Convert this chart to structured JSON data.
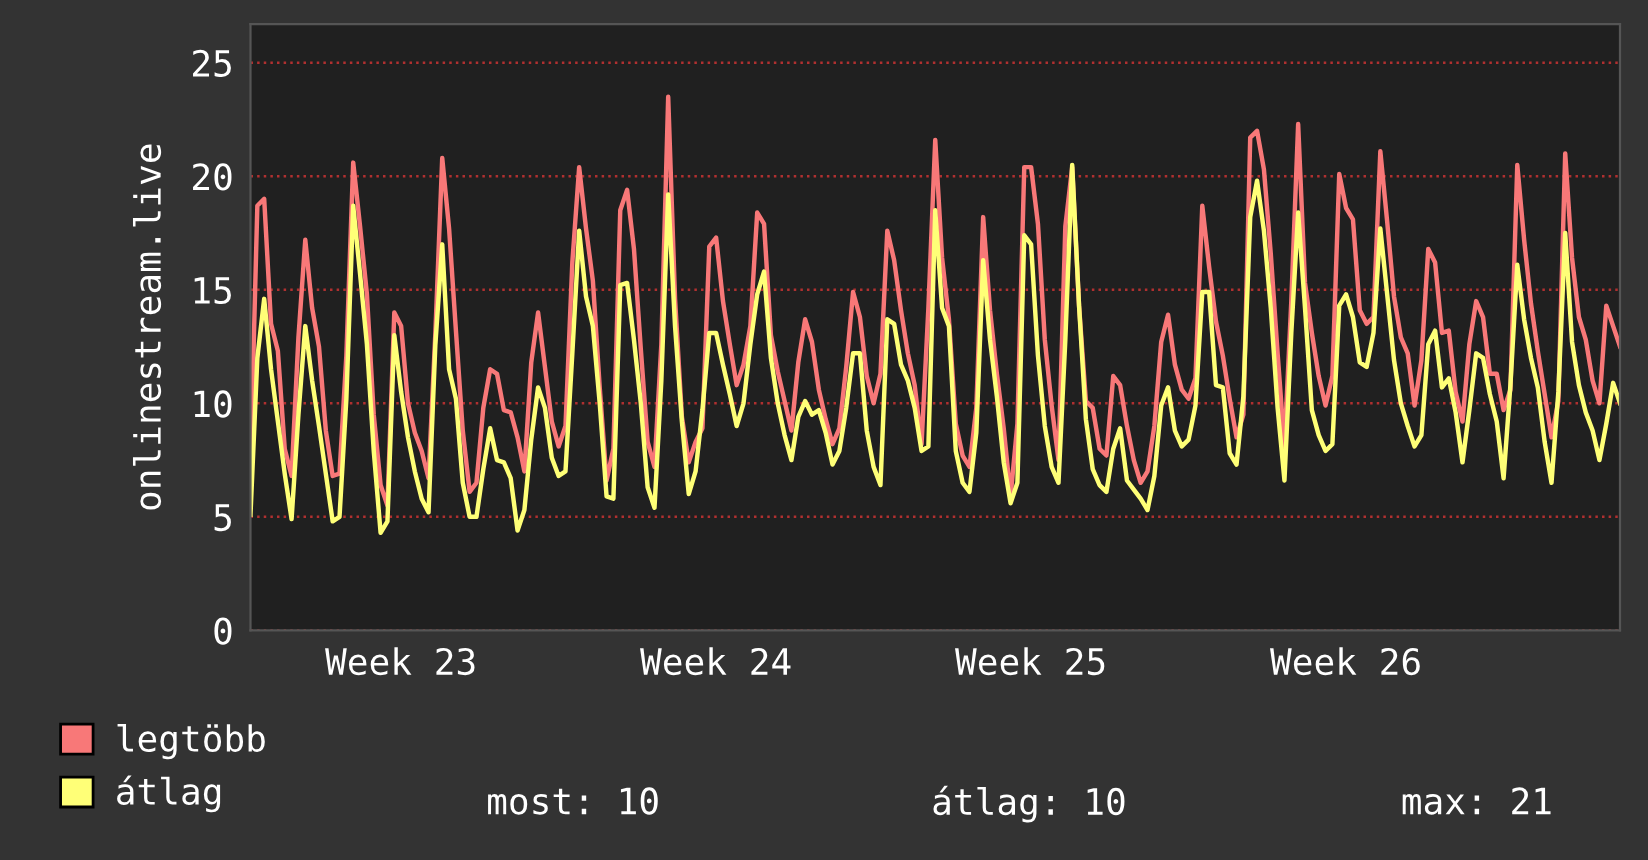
{
  "chart_data": {
    "type": "line",
    "ylabel": "onlinestream.live",
    "categories": [
      null,
      null,
      null,
      null,
      null,
      null,
      null,
      null,
      null,
      null,
      null,
      null,
      null,
      null,
      null,
      null,
      null,
      null,
      null,
      null,
      null,
      null,
      "Week 23",
      null,
      null,
      null,
      null,
      null,
      null,
      null,
      null,
      null,
      null,
      null,
      null,
      null,
      null,
      null,
      null,
      null,
      null,
      null,
      null,
      null,
      null,
      null,
      null,
      null,
      null,
      null,
      null,
      null,
      null,
      null,
      null,
      null,
      null,
      null,
      null,
      null,
      null,
      null,
      null,
      null,
      null,
      null,
      null,
      null,
      "Week 24",
      null,
      null,
      null,
      null,
      null,
      null,
      null,
      null,
      null,
      null,
      null,
      null,
      null,
      null,
      null,
      null,
      null,
      null,
      null,
      null,
      null,
      null,
      null,
      null,
      null,
      null,
      null,
      null,
      null,
      null,
      null,
      null,
      null,
      null,
      null,
      null,
      null,
      null,
      null,
      null,
      null,
      null,
      null,
      null,
      null,
      "Week 25",
      null,
      null,
      null,
      null,
      null,
      null,
      null,
      null,
      null,
      null,
      null,
      null,
      null,
      null,
      null,
      null,
      null,
      null,
      null,
      null,
      null,
      null,
      null,
      null,
      null,
      null,
      null,
      null,
      null,
      null,
      null,
      null,
      null,
      null,
      null,
      null,
      null,
      null,
      null,
      null,
      null,
      null,
      null,
      null,
      null,
      "Week 26",
      null,
      null,
      null,
      null,
      null,
      null,
      null,
      null,
      null,
      null,
      null,
      null,
      null,
      null,
      null,
      null,
      null,
      null,
      null,
      null,
      null,
      null,
      null,
      null,
      null,
      null,
      null,
      null,
      null,
      null,
      null,
      null,
      null,
      null,
      null,
      null,
      null,
      null,
      null,
      null
    ],
    "ylim": [
      0,
      26.7
    ],
    "yticks": [
      0,
      5,
      10,
      15,
      20,
      25
    ],
    "grid": "y",
    "legend": "bottom left",
    "annotations": [
      "most: 10",
      "átlag: 10",
      "max: 21"
    ],
    "series": [
      {
        "name": "legtöbb",
        "color": "#f87878",
        "values": [
          7.2,
          18.7,
          19.0,
          13.5,
          12.3,
          8.0,
          6.8,
          12.9,
          17.2,
          14.2,
          12.5,
          8.8,
          6.8,
          6.9,
          12.1,
          20.6,
          17.8,
          14.8,
          9.5,
          6.4,
          5.5,
          14.0,
          13.4,
          10.0,
          8.7,
          7.9,
          6.7,
          13.1,
          20.8,
          17.7,
          13.2,
          8.8,
          6.1,
          6.5,
          9.8,
          11.5,
          11.3,
          9.7,
          9.6,
          8.5,
          7.0,
          11.8,
          14.0,
          11.6,
          9.2,
          8.1,
          9.0,
          16.2,
          20.4,
          17.7,
          15.4,
          10.7,
          6.6,
          8.0,
          18.5,
          19.4,
          16.8,
          12.4,
          8.3,
          7.2,
          12.6,
          23.5,
          14.6,
          9.4,
          7.4,
          8.3,
          8.9,
          16.9,
          17.3,
          14.5,
          12.6,
          10.8,
          11.7,
          13.4,
          18.4,
          17.9,
          13.0,
          11.4,
          10.1,
          8.8,
          11.8,
          13.7,
          12.7,
          10.6,
          9.3,
          8.2,
          8.9,
          11.6,
          14.9,
          13.8,
          11.2,
          10.0,
          11.3,
          17.6,
          16.3,
          14.1,
          12.2,
          10.8,
          8.2,
          14.2,
          21.6,
          16.4,
          13.7,
          9.1,
          7.7,
          7.2,
          9.8,
          18.2,
          14.1,
          11.3,
          8.9,
          5.9,
          9.1,
          20.4,
          20.4,
          17.9,
          12.8,
          9.9,
          7.5,
          17.8,
          20.4,
          14.3,
          10.1,
          9.8,
          8.0,
          7.7,
          11.2,
          10.8,
          9.0,
          7.5,
          6.5,
          7.0,
          9.0,
          12.7,
          13.9,
          11.7,
          10.6,
          10.2,
          11.1,
          18.7,
          16.0,
          13.6,
          12.1,
          10.2,
          8.5,
          9.5,
          21.7,
          22.0,
          20.3,
          16.6,
          12.2,
          8.1,
          14.5,
          22.3,
          15.3,
          13.1,
          11.2,
          9.9,
          11.2,
          20.1,
          18.6,
          18.1,
          14.1,
          13.5,
          13.8,
          21.1,
          18.0,
          14.7,
          12.9,
          12.2,
          9.9,
          11.9,
          16.8,
          16.2,
          13.1,
          13.2,
          10.5,
          9.2,
          12.6,
          14.5,
          13.8,
          11.3,
          11.3,
          9.7,
          10.6,
          20.5,
          17.2,
          14.4,
          12.3,
          10.4,
          8.5,
          10.1,
          21.0,
          16.4,
          13.8,
          12.8,
          11.0,
          10.0,
          14.3,
          13.4,
          12.5
        ]
      },
      {
        "name": "átlag",
        "color": "#ffff77",
        "values": [
          5.1,
          12.0,
          14.6,
          11.5,
          9.2,
          6.9,
          4.9,
          9.5,
          13.4,
          11.0,
          9.0,
          6.9,
          4.8,
          5.0,
          10.2,
          18.7,
          15.7,
          12.6,
          7.9,
          4.3,
          4.8,
          13.0,
          10.5,
          8.5,
          7.0,
          5.8,
          5.2,
          12.6,
          17.0,
          11.5,
          10.2,
          6.5,
          5.0,
          5.0,
          7.1,
          8.9,
          7.5,
          7.4,
          6.7,
          4.4,
          5.3,
          8.4,
          10.7,
          9.8,
          7.6,
          6.8,
          7.0,
          12.2,
          17.6,
          14.7,
          13.4,
          10.0,
          5.9,
          5.8,
          15.2,
          15.3,
          12.8,
          10.0,
          6.3,
          5.4,
          11.0,
          19.2,
          13.4,
          9.2,
          6.0,
          7.0,
          9.7,
          13.1,
          13.1,
          11.7,
          10.4,
          9.0,
          10.0,
          12.6,
          14.8,
          15.8,
          12.0,
          10.0,
          8.6,
          7.5,
          9.4,
          10.1,
          9.5,
          9.7,
          8.7,
          7.3,
          7.9,
          9.8,
          12.2,
          12.2,
          8.8,
          7.2,
          6.4,
          13.7,
          13.5,
          11.7,
          11.0,
          9.8,
          7.9,
          8.1,
          18.5,
          14.2,
          13.4,
          7.9,
          6.5,
          6.1,
          8.7,
          16.3,
          12.8,
          10.3,
          7.4,
          5.6,
          6.5,
          17.4,
          17.0,
          12.1,
          9.0,
          7.2,
          6.5,
          12.8,
          20.5,
          14.3,
          9.3,
          7.1,
          6.4,
          6.1,
          8.0,
          8.9,
          6.6,
          6.2,
          5.8,
          5.3,
          6.8,
          9.9,
          10.7,
          8.8,
          8.1,
          8.4,
          9.9,
          14.9,
          14.9,
          10.8,
          10.7,
          7.8,
          7.3,
          10.3,
          18.2,
          19.8,
          17.6,
          14.2,
          9.8,
          6.6,
          13.1,
          18.4,
          14.2,
          9.7,
          8.6,
          7.9,
          8.2,
          14.3,
          14.8,
          13.8,
          11.8,
          11.6,
          13.1,
          17.7,
          14.8,
          11.9,
          10.0,
          9.0,
          8.1,
          8.6,
          12.6,
          13.2,
          10.7,
          11.1,
          9.6,
          7.4,
          9.7,
          12.2,
          12.0,
          10.4,
          9.2,
          6.7,
          10.8,
          16.1,
          13.7,
          12.0,
          10.7,
          8.3,
          6.5,
          10.5,
          17.5,
          12.7,
          10.8,
          9.6,
          8.8,
          7.5,
          9.1,
          10.9,
          10.0
        ]
      }
    ]
  }
}
